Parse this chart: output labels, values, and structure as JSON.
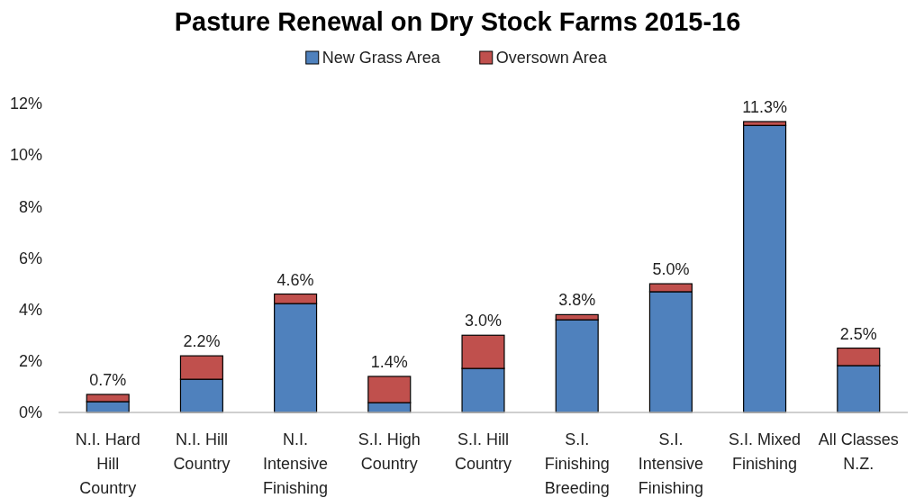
{
  "chart_data": {
    "type": "bar",
    "stacked": true,
    "title": "Pasture Renewal on Dry Stock Farms 2015-16",
    "categories": [
      "N.I. Hard Hill Country",
      "N.I. Hill Country",
      "N.I. Intensive Finishing",
      "S.I. High Country",
      "S.I. Hill Country",
      "S.I. Finishing Breeding",
      "S.I. Intensive Finishing",
      "S.I. Mixed Finishing",
      "All Classes N.Z."
    ],
    "series": [
      {
        "name": "New Grass Area",
        "color": "#4f81bd",
        "values": [
          0.42,
          1.29,
          4.23,
          0.38,
          1.71,
          3.6,
          4.69,
          11.15,
          1.82
        ]
      },
      {
        "name": "Oversown Area",
        "color": "#c0504d",
        "values": [
          0.28,
          0.91,
          0.37,
          1.02,
          1.29,
          0.2,
          0.31,
          0.15,
          0.68
        ]
      }
    ],
    "totals": [
      "0.7%",
      "2.2%",
      "4.6%",
      "1.4%",
      "3.0%",
      "3.8%",
      "5.0%",
      "11.3%",
      "2.5%"
    ],
    "ylim": [
      0,
      12
    ],
    "yticks": [
      {
        "value": 0,
        "label": "0%"
      },
      {
        "value": 2,
        "label": "2%"
      },
      {
        "value": 4,
        "label": "4%"
      },
      {
        "value": 6,
        "label": "6%"
      },
      {
        "value": 8,
        "label": "8%"
      },
      {
        "value": 10,
        "label": "10%"
      },
      {
        "value": 12,
        "label": "12%"
      }
    ],
    "grid": false,
    "legend": "top"
  }
}
